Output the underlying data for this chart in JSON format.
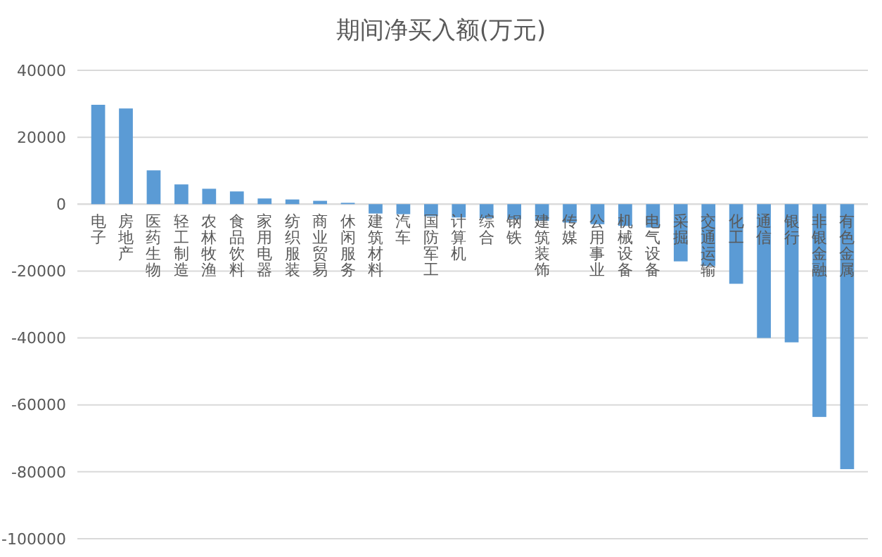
{
  "chart_data": {
    "type": "bar",
    "title": "期间净买入额(万元)",
    "categories": [
      "电子",
      "房地产",
      "医药生物",
      "轻工制造",
      "农林牧渔",
      "食品饮料",
      "家用电器",
      "纺织服装",
      "商业贸易",
      "休闲服务",
      "建筑材料",
      "汽车",
      "国防军工",
      "计算机",
      "综合",
      "钢铁",
      "建筑装饰",
      "传媒",
      "公用事业",
      "机械设备",
      "电气设备",
      "采掘",
      "交通运输",
      "化工",
      "通信",
      "银行",
      "非银金融",
      "有色金属"
    ],
    "values": [
      29700,
      28600,
      10100,
      5900,
      4600,
      3800,
      1700,
      1400,
      1000,
      400,
      -2800,
      -3000,
      -3600,
      -4000,
      -4200,
      -4500,
      -5000,
      -5500,
      -6000,
      -6500,
      -7000,
      -17100,
      -18500,
      -23800,
      -40000,
      -41300,
      -63600,
      -79200
    ],
    "color": "#5b9bd5",
    "ylim": [
      -100000,
      40000
    ],
    "yticks": [
      -100000,
      -80000,
      -60000,
      -40000,
      -20000,
      0,
      20000,
      40000
    ],
    "grid": "y"
  }
}
